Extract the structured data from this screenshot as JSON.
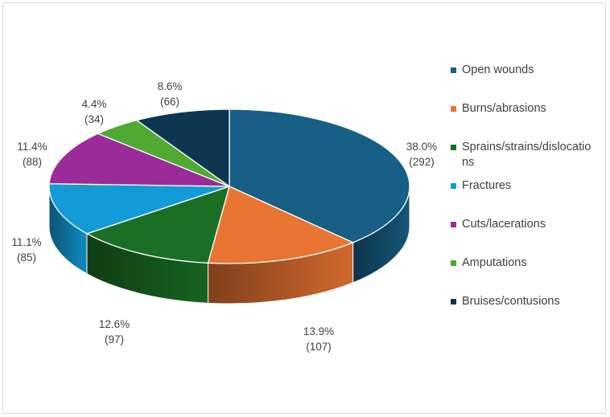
{
  "chart_data": {
    "type": "pie",
    "style": "3d",
    "slices": [
      {
        "label": "Open wounds",
        "value": 292,
        "percent_label": "38.0%",
        "count_label": "(292)",
        "color": "#175f85"
      },
      {
        "label": "Burns/abrasions",
        "value": 107,
        "percent_label": "13.9%",
        "count_label": "(107)",
        "color": "#e87532"
      },
      {
        "label": "Sprains/strains/dislocations",
        "value": 97,
        "percent_label": "12.6%",
        "count_label": "(97)",
        "color": "#1b6f25"
      },
      {
        "label": "Fractures",
        "value": 85,
        "percent_label": "11.1%",
        "count_label": "(85)",
        "color": "#129bd6"
      },
      {
        "label": "Cuts/lacerations",
        "value": 88,
        "percent_label": "11.4%",
        "count_label": "(88)",
        "color": "#9b2b99"
      },
      {
        "label": "Amputations",
        "value": 34,
        "percent_label": "4.4%",
        "count_label": "(34)",
        "color": "#4fa932"
      },
      {
        "label": "Bruises/contusions",
        "value": 66,
        "percent_label": "8.6%",
        "count_label": "(66)",
        "color": "#0d3651"
      }
    ],
    "legend_position": "right"
  }
}
